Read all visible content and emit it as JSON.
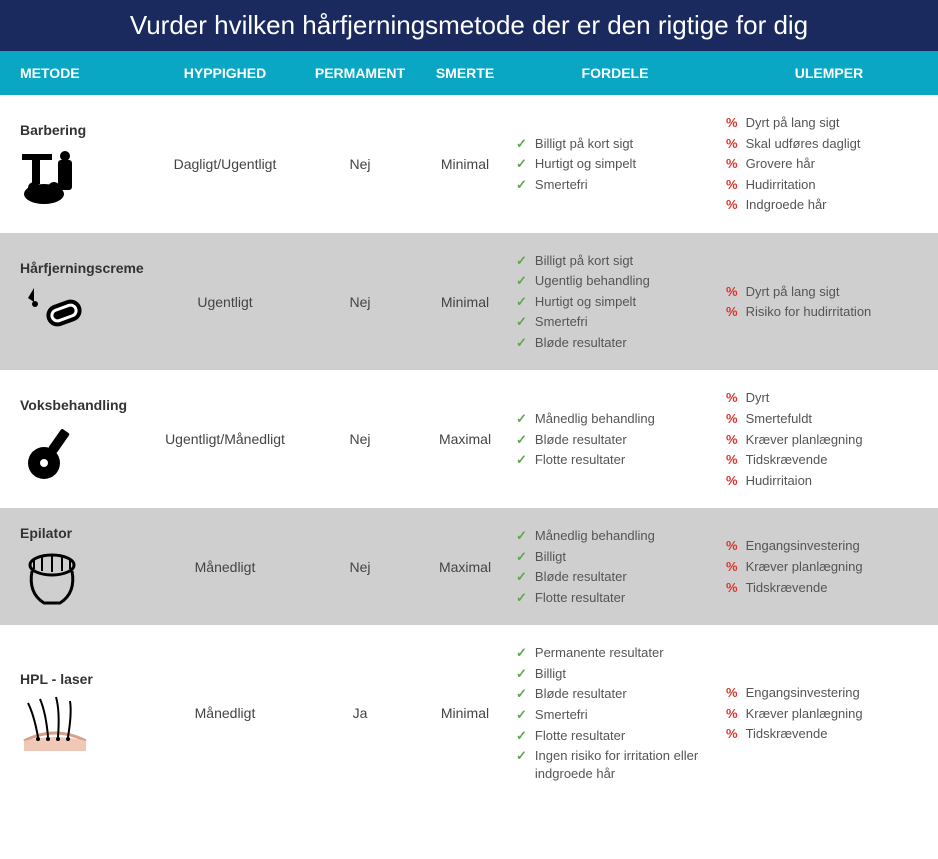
{
  "title": "Vurder hvilken hårfjerningsmetode der er den rigtige for dig",
  "colors": {
    "title_bg": "#1a2a5e",
    "header_bg": "#0aa7c5",
    "alt_row_bg": "#cfcfcf",
    "check": "#5fa74f",
    "cross": "#d9352c",
    "text": "#444444"
  },
  "columns": [
    "METODE",
    "HYPPIGHED",
    "PERMAMENT",
    "SMERTE",
    "FORDELE",
    "ULEMPER"
  ],
  "rows": [
    {
      "method": "Barbering",
      "icon": "razor-icon",
      "frequency": "Dagligt/Ugentligt",
      "permanent": "Nej",
      "pain": "Minimal",
      "pros": [
        "Billigt på kort sigt",
        "Hurtigt og simpelt",
        "Smertefri"
      ],
      "cons": [
        "Dyrt på lang sigt",
        "Skal udføres dagligt",
        "Grovere hår",
        "Hudirritation",
        "Indgroede hår"
      ],
      "alt": false
    },
    {
      "method": "Hårfjerningscreme",
      "icon": "cream-icon",
      "frequency": "Ugentligt",
      "permanent": "Nej",
      "pain": "Minimal",
      "pros": [
        "Billigt på kort sigt",
        "Ugentlig behandling",
        "Hurtigt og simpelt",
        "Smertefri",
        "Bløde resultater"
      ],
      "cons": [
        "Dyrt på lang sigt",
        "Risiko for hudirritation"
      ],
      "alt": true
    },
    {
      "method": "Voksbehandling",
      "icon": "wax-icon",
      "frequency": "Ugentligt/Månedligt",
      "permanent": "Nej",
      "pain": "Maximal",
      "pros": [
        "Månedlig behandling",
        "Bløde resultater",
        "Flotte resultater"
      ],
      "cons": [
        "Dyrt",
        "Smertefuldt",
        "Kræver planlægning",
        "Tidskrævende",
        "Hudirritaion"
      ],
      "alt": false
    },
    {
      "method": "Epilator",
      "icon": "epilator-icon",
      "frequency": "Månedligt",
      "permanent": "Nej",
      "pain": "Maximal",
      "pros": [
        "Månedlig behandling",
        "Billigt",
        "Bløde resultater",
        "Flotte resultater"
      ],
      "cons": [
        "Engangsinvestering",
        "Kræver planlægning",
        "Tidskrævende"
      ],
      "alt": true
    },
    {
      "method": "HPL - laser",
      "icon": "laser-icon",
      "frequency": "Månedligt",
      "permanent": "Ja",
      "pain": "Minimal",
      "pros": [
        "Permanente resultater",
        "Billigt",
        "Bløde resultater",
        "Smertefri",
        "Flotte resultater",
        "Ingen risiko for irritation eller indgroede hår"
      ],
      "cons": [
        "Engangsinvestering",
        "Kræver planlægning",
        "Tidskrævende"
      ],
      "alt": false
    }
  ]
}
